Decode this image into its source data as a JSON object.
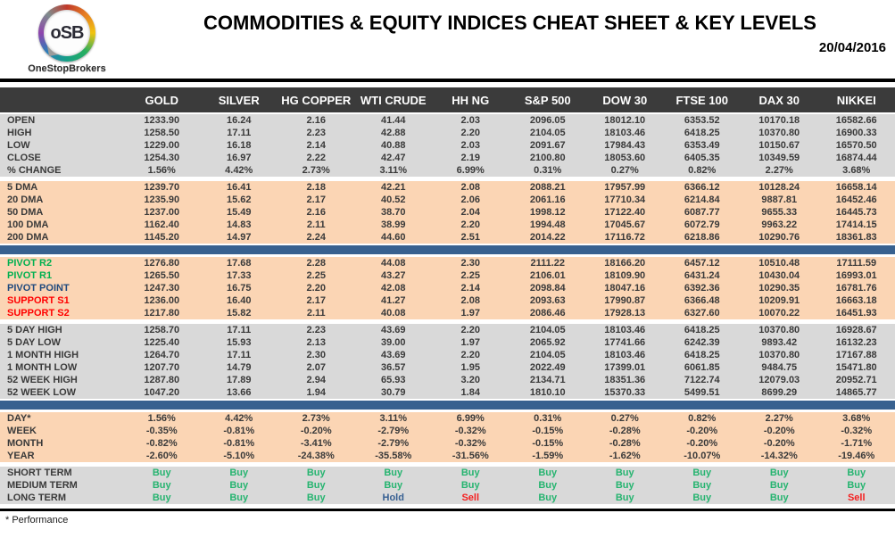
{
  "header": {
    "logo_text": "oSB",
    "logo_subtext": "OneStopBrokers",
    "title": "COMMODITIES & EQUITY INDICES CHEAT SHEET & KEY LEVELS",
    "date": "20/04/2016"
  },
  "footer": {
    "note": "* Performance"
  },
  "colors": {
    "header_bg": "#3b3b3b",
    "row_gray": "#d9d9d9",
    "row_orange": "#fbd5b4",
    "divider_blue": "#38618f",
    "text_dark": "#3a3a3a",
    "green": "#00b050",
    "red": "#ff0000",
    "navy": "#1f497d",
    "buy": "#26b470",
    "hold": "#376092",
    "sell": "#f42121"
  },
  "table": {
    "columns": [
      "GOLD",
      "SILVER",
      "HG COPPER",
      "WTI CRUDE",
      "HH NG",
      "S&P 500",
      "DOW 30",
      "FTSE 100",
      "DAX 30",
      "NIKKEI"
    ],
    "sections": [
      {
        "name": "ohlc",
        "bg": "gray",
        "rows": [
          {
            "label": "OPEN",
            "values": [
              "1233.90",
              "16.24",
              "2.16",
              "41.44",
              "2.03",
              "2096.05",
              "18012.10",
              "6353.52",
              "10170.18",
              "16582.66"
            ]
          },
          {
            "label": "HIGH",
            "values": [
              "1258.50",
              "17.11",
              "2.23",
              "42.88",
              "2.20",
              "2104.05",
              "18103.46",
              "6418.25",
              "10370.80",
              "16900.33"
            ]
          },
          {
            "label": "LOW",
            "values": [
              "1229.00",
              "16.18",
              "2.14",
              "40.88",
              "2.03",
              "2091.67",
              "17984.43",
              "6353.49",
              "10150.67",
              "16570.50"
            ]
          },
          {
            "label": "CLOSE",
            "values": [
              "1254.30",
              "16.97",
              "2.22",
              "42.47",
              "2.19",
              "2100.80",
              "18053.60",
              "6405.35",
              "10349.59",
              "16874.44"
            ]
          },
          {
            "label": "% CHANGE",
            "values": [
              "1.56%",
              "4.42%",
              "2.73%",
              "3.11%",
              "6.99%",
              "0.31%",
              "0.27%",
              "0.82%",
              "2.27%",
              "3.68%"
            ]
          }
        ]
      },
      {
        "name": "dma",
        "bg": "orange",
        "divider_after": "blue",
        "rows": [
          {
            "label": "5 DMA",
            "values": [
              "1239.70",
              "16.41",
              "2.18",
              "42.21",
              "2.08",
              "2088.21",
              "17957.99",
              "6366.12",
              "10128.24",
              "16658.14"
            ]
          },
          {
            "label": "20 DMA",
            "values": [
              "1235.90",
              "15.62",
              "2.17",
              "40.52",
              "2.06",
              "2061.16",
              "17710.34",
              "6214.84",
              "9887.81",
              "16452.46"
            ]
          },
          {
            "label": "50 DMA",
            "values": [
              "1237.00",
              "15.49",
              "2.16",
              "38.70",
              "2.04",
              "1998.12",
              "17122.40",
              "6087.77",
              "9655.33",
              "16445.73"
            ]
          },
          {
            "label": "100 DMA",
            "values": [
              "1162.40",
              "14.83",
              "2.11",
              "38.99",
              "2.20",
              "1994.48",
              "17045.67",
              "6072.79",
              "9963.22",
              "17414.15"
            ]
          },
          {
            "label": "200 DMA",
            "values": [
              "1145.20",
              "14.97",
              "2.24",
              "44.60",
              "2.51",
              "2014.22",
              "17116.72",
              "6218.86",
              "10290.76",
              "18361.83"
            ]
          }
        ]
      },
      {
        "name": "pivots",
        "bg": "orange",
        "rows": [
          {
            "label": "PIVOT R2",
            "label_color": "green",
            "values": [
              "1276.80",
              "17.68",
              "2.28",
              "44.08",
              "2.30",
              "2111.22",
              "18166.20",
              "6457.12",
              "10510.48",
              "17111.59"
            ]
          },
          {
            "label": "PIVOT R1",
            "label_color": "green",
            "values": [
              "1265.50",
              "17.33",
              "2.25",
              "43.27",
              "2.25",
              "2106.01",
              "18109.90",
              "6431.24",
              "10430.04",
              "16993.01"
            ]
          },
          {
            "label": "PIVOT POINT",
            "label_color": "navy",
            "values": [
              "1247.30",
              "16.75",
              "2.20",
              "42.08",
              "2.14",
              "2098.84",
              "18047.16",
              "6392.36",
              "10290.35",
              "16781.76"
            ]
          },
          {
            "label": "SUPPORT S1",
            "label_color": "red",
            "values": [
              "1236.00",
              "16.40",
              "2.17",
              "41.27",
              "2.08",
              "2093.63",
              "17990.87",
              "6366.48",
              "10209.91",
              "16663.18"
            ]
          },
          {
            "label": "SUPPORT S2",
            "label_color": "red",
            "values": [
              "1217.80",
              "15.82",
              "2.11",
              "40.08",
              "1.97",
              "2086.46",
              "17928.13",
              "6327.60",
              "10070.22",
              "16451.93"
            ]
          }
        ]
      },
      {
        "name": "ranges",
        "bg": "gray",
        "divider_after": "blue",
        "rows": [
          {
            "label": "5 DAY HIGH",
            "values": [
              "1258.70",
              "17.11",
              "2.23",
              "43.69",
              "2.20",
              "2104.05",
              "18103.46",
              "6418.25",
              "10370.80",
              "16928.67"
            ]
          },
          {
            "label": "5 DAY LOW",
            "values": [
              "1225.40",
              "15.93",
              "2.13",
              "39.00",
              "1.97",
              "2065.92",
              "17741.66",
              "6242.39",
              "9893.42",
              "16132.23"
            ]
          },
          {
            "label": "1 MONTH HIGH",
            "values": [
              "1264.70",
              "17.11",
              "2.30",
              "43.69",
              "2.20",
              "2104.05",
              "18103.46",
              "6418.25",
              "10370.80",
              "17167.88"
            ]
          },
          {
            "label": "1 MONTH LOW",
            "values": [
              "1207.70",
              "14.79",
              "2.07",
              "36.57",
              "1.95",
              "2022.49",
              "17399.01",
              "6061.85",
              "9484.75",
              "15471.80"
            ]
          },
          {
            "label": "52 WEEK HIGH",
            "values": [
              "1287.80",
              "17.89",
              "2.94",
              "65.93",
              "3.20",
              "2134.71",
              "18351.36",
              "7122.74",
              "12079.03",
              "20952.71"
            ]
          },
          {
            "label": "52 WEEK LOW",
            "values": [
              "1047.20",
              "13.66",
              "1.94",
              "30.79",
              "1.84",
              "1810.10",
              "15370.33",
              "5499.51",
              "8699.29",
              "14865.77"
            ]
          }
        ]
      },
      {
        "name": "performance",
        "bg": "orange",
        "rows": [
          {
            "label": "DAY*",
            "values": [
              "1.56%",
              "4.42%",
              "2.73%",
              "3.11%",
              "6.99%",
              "0.31%",
              "0.27%",
              "0.82%",
              "2.27%",
              "3.68%"
            ]
          },
          {
            "label": "WEEK",
            "values": [
              "-0.35%",
              "-0.81%",
              "-0.20%",
              "-2.79%",
              "-0.32%",
              "-0.15%",
              "-0.28%",
              "-0.20%",
              "-0.20%",
              "-0.32%"
            ]
          },
          {
            "label": "MONTH",
            "values": [
              "-0.82%",
              "-0.81%",
              "-3.41%",
              "-2.79%",
              "-0.32%",
              "-0.15%",
              "-0.28%",
              "-0.20%",
              "-0.20%",
              "-1.71%"
            ]
          },
          {
            "label": "YEAR",
            "values": [
              "-2.60%",
              "-5.10%",
              "-24.38%",
              "-35.58%",
              "-31.56%",
              "-1.59%",
              "-1.62%",
              "-10.07%",
              "-14.32%",
              "-19.46%"
            ]
          }
        ]
      },
      {
        "name": "signals",
        "bg": "gray",
        "colored_values": true,
        "rows": [
          {
            "label": "SHORT TERM",
            "values": [
              "Buy",
              "Buy",
              "Buy",
              "Buy",
              "Buy",
              "Buy",
              "Buy",
              "Buy",
              "Buy",
              "Buy"
            ]
          },
          {
            "label": "MEDIUM TERM",
            "values": [
              "Buy",
              "Buy",
              "Buy",
              "Buy",
              "Buy",
              "Buy",
              "Buy",
              "Buy",
              "Buy",
              "Buy"
            ]
          },
          {
            "label": "LONG TERM",
            "values": [
              "Buy",
              "Buy",
              "Buy",
              "Hold",
              "Sell",
              "Buy",
              "Buy",
              "Buy",
              "Buy",
              "Sell"
            ]
          }
        ]
      }
    ]
  }
}
